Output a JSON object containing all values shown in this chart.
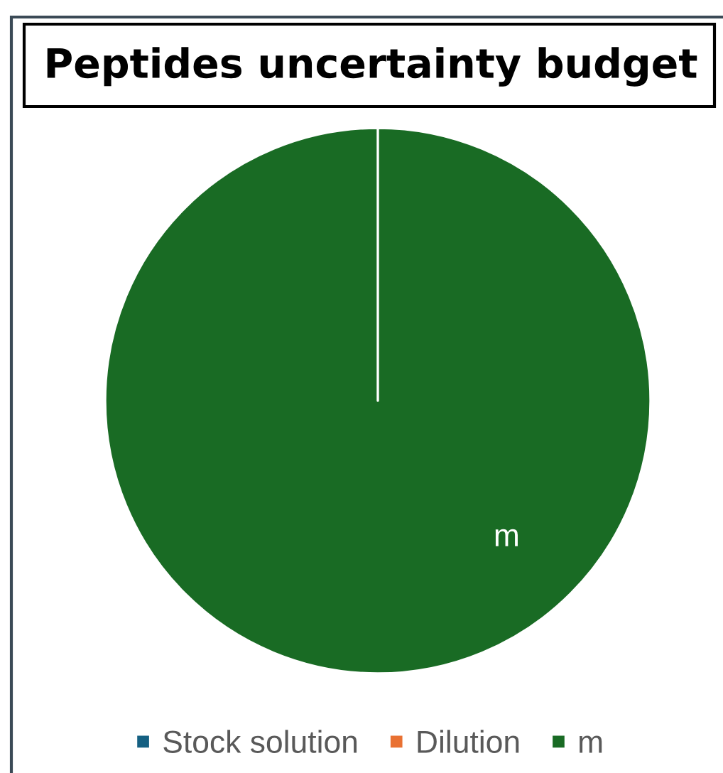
{
  "chart_data": {
    "type": "pie",
    "title": "Peptides uncertainty budget",
    "categories": [
      "Stock solution",
      "Dilution",
      "m"
    ],
    "values": [
      0,
      0,
      100
    ],
    "colors": [
      "#156082",
      "#e97132",
      "#196b24"
    ],
    "value_labels": [
      null,
      null,
      "m"
    ],
    "legend": "bottom"
  }
}
